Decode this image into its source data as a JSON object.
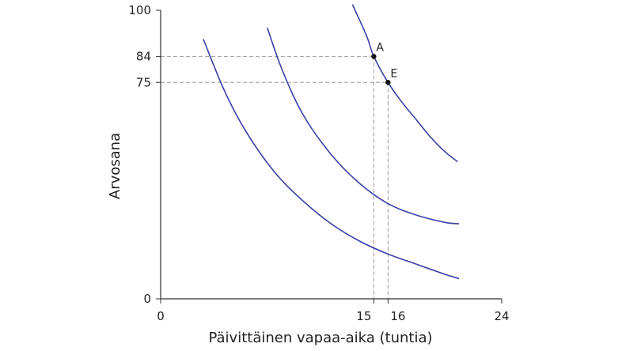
{
  "chart_data": {
    "type": "line",
    "xlabel": "Päivittäinen vapaa-aika (tuntia)",
    "ylabel": "Arvosana",
    "xlim": [
      0,
      24
    ],
    "ylim": [
      0,
      100
    ],
    "x_ticks": [
      0,
      15,
      16,
      24
    ],
    "y_ticks": [
      0,
      75,
      84,
      100
    ],
    "grid": false,
    "line_color": "#3a3ea8",
    "guide_color": "#999999",
    "series": [
      {
        "x": [
          3.0,
          4.5,
          6.0,
          8.0,
          10.0,
          12.0,
          14.0,
          16.0,
          18.0,
          20.0,
          21.0
        ],
        "y": [
          90.0,
          72.0,
          58.0,
          44.0,
          34.0,
          26.0,
          20.0,
          15.5,
          12.0,
          8.5,
          7.0
        ]
      },
      {
        "x": [
          7.5,
          8.5,
          10.0,
          12.0,
          14.0,
          16.0,
          18.0,
          20.0,
          21.0
        ],
        "y": [
          94.0,
          80.0,
          64.0,
          50.0,
          40.0,
          33.0,
          29.0,
          26.5,
          26.0
        ]
      },
      {
        "x": [
          13.5,
          14.5,
          15.0,
          16.0,
          17.0,
          18.0,
          19.0,
          20.0,
          20.9
        ],
        "y": [
          102.0,
          91.0,
          84.0,
          75.0,
          68.0,
          62.0,
          56.0,
          51.0,
          47.5
        ]
      }
    ],
    "points": [
      {
        "label": "A",
        "x": 15,
        "y": 84
      },
      {
        "label": "E",
        "x": 16,
        "y": 75
      }
    ]
  }
}
